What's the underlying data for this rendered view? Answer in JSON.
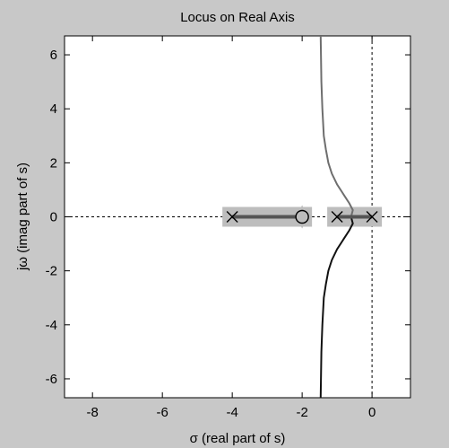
{
  "chart_data": {
    "type": "line",
    "title": "Locus on Real Axis",
    "xlabel": "σ (real part of s)",
    "ylabel": "jω (imag part of s)",
    "xlim": [
      -8.8,
      1.1
    ],
    "ylim": [
      -6.7,
      6.7
    ],
    "xticks": [
      -8,
      -6,
      -4,
      -2,
      0
    ],
    "yticks": [
      -6,
      -4,
      -2,
      0,
      2,
      4,
      6
    ],
    "grid": false,
    "poles": [
      {
        "x": -4,
        "y": 0
      },
      {
        "x": -1,
        "y": 0
      },
      {
        "x": 0,
        "y": 0
      }
    ],
    "zeros": [
      {
        "x": -2,
        "y": 0
      }
    ],
    "real_axis_locus_segments": [
      {
        "from": -4,
        "to": -2
      },
      {
        "from": -1,
        "to": 0
      }
    ],
    "series": [
      {
        "branch": "upper",
        "color": "#6e6e6e",
        "points": [
          [
            -0.6,
            0.0
          ],
          [
            -0.55,
            0.25
          ],
          [
            -0.65,
            0.5
          ],
          [
            -0.8,
            0.8
          ],
          [
            -1.0,
            1.2
          ],
          [
            -1.15,
            1.6
          ],
          [
            -1.25,
            2.0
          ],
          [
            -1.32,
            2.5
          ],
          [
            -1.38,
            3.0
          ],
          [
            -1.42,
            4.0
          ],
          [
            -1.45,
            5.0
          ],
          [
            -1.47,
            6.7
          ]
        ]
      },
      {
        "branch": "lower",
        "color": "#111111",
        "points": [
          [
            -0.6,
            0.0
          ],
          [
            -0.55,
            -0.25
          ],
          [
            -0.65,
            -0.5
          ],
          [
            -0.8,
            -0.8
          ],
          [
            -1.0,
            -1.2
          ],
          [
            -1.15,
            -1.6
          ],
          [
            -1.25,
            -2.0
          ],
          [
            -1.32,
            -2.5
          ],
          [
            -1.38,
            -3.0
          ],
          [
            -1.42,
            -4.0
          ],
          [
            -1.45,
            -5.0
          ],
          [
            -1.47,
            -6.7
          ]
        ]
      }
    ],
    "colors": {
      "figure_bg": "#c8c8c8",
      "axes_bg": "#ffffff",
      "highlight": "#bdbdbd",
      "locus_segment": "#555555"
    }
  }
}
